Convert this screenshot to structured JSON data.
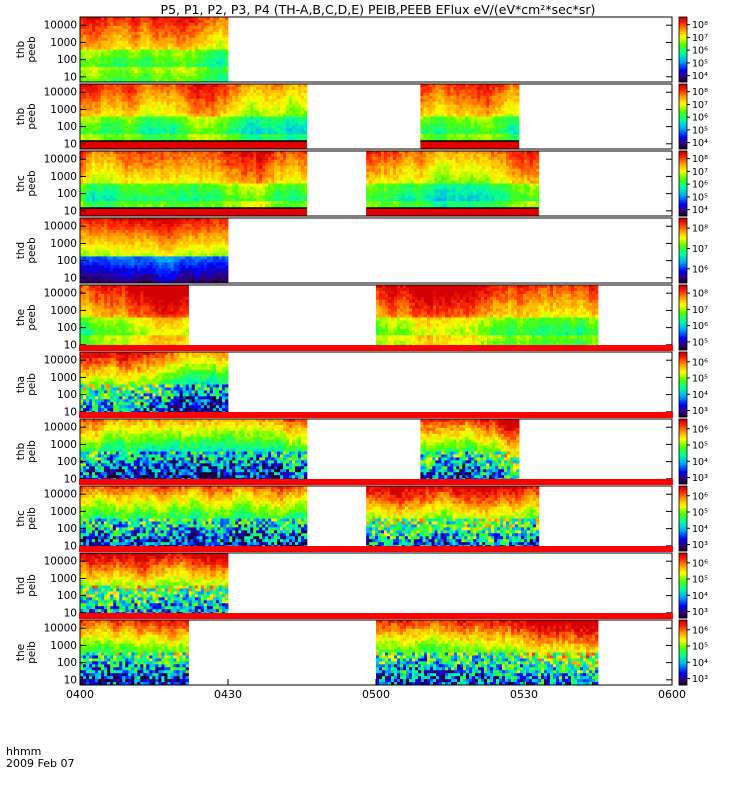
{
  "title": "P5, P1, P2, P3, P4 (TH-A,B,C,D,E) PEIB,PEEB EFlux eV/(eV*cm²*sec*sr)",
  "x_axis": {
    "label": "hhmm",
    "date": "2009 Feb 07",
    "ticks": [
      "0400",
      "0430",
      "0500",
      "0530",
      "0600"
    ]
  },
  "chart_data": {
    "type": "heatmap",
    "title": "P5, P1, P2, P3, P4 (TH-A,B,C,D,E) PEIB,PEEB EFlux eV/(eV*cm²*sec*sr)",
    "xlabel": "hhmm",
    "x_range": [
      "04:00",
      "06:00"
    ],
    "y_scale": "log",
    "y_ticks": [
      10,
      100,
      1000,
      10000
    ],
    "colormap": "rainbow",
    "panels": [
      {
        "label": [
          "thb",
          "peeb"
        ],
        "ylim": [
          5,
          30000
        ],
        "cbar": [
          "10⁴",
          "10⁵",
          "10⁶",
          "10⁷",
          "10⁸"
        ],
        "cbar_range": [
          3.5,
          8.6
        ],
        "kind": "peeb",
        "seed": 11,
        "segments": [
          [
            "04:00",
            "04:30"
          ]
        ]
      },
      {
        "label": [
          "thb",
          "peeb"
        ],
        "ylim": [
          5,
          30000
        ],
        "cbar": [
          "10⁴",
          "10⁵",
          "10⁶",
          "10⁷",
          "10⁸"
        ],
        "cbar_range": [
          3.5,
          8.6
        ],
        "kind": "peeb",
        "seed": 23,
        "redbottom": true,
        "segments": [
          [
            "04:00",
            "04:46"
          ],
          [
            "05:09",
            "05:29"
          ]
        ]
      },
      {
        "label": [
          "thc",
          "peeb"
        ],
        "ylim": [
          5,
          30000
        ],
        "cbar": [
          "10⁴",
          "10⁵",
          "10⁶",
          "10⁷",
          "10⁸"
        ],
        "cbar_range": [
          3.5,
          8.6
        ],
        "kind": "peeb",
        "seed": 37,
        "redbottom": true,
        "segments": [
          [
            "04:00",
            "04:46"
          ],
          [
            "04:58",
            "05:33"
          ]
        ]
      },
      {
        "label": [
          "thd",
          "peeb"
        ],
        "ylim": [
          5,
          30000
        ],
        "cbar": [
          "10⁶",
          "10⁷",
          "10⁸"
        ],
        "cbar_range": [
          5.3,
          8.5
        ],
        "kind": "peebd",
        "seed": 41,
        "segments": [
          [
            "04:00",
            "04:30"
          ]
        ]
      },
      {
        "label": [
          "the",
          "peeb"
        ],
        "ylim": [
          5,
          30000
        ],
        "cbar": [
          "10⁵",
          "10⁶",
          "10⁷",
          "10⁸"
        ],
        "cbar_range": [
          4.5,
          8.5
        ],
        "kind": "peeb",
        "seed": 53,
        "segments": [
          [
            "04:00",
            "04:22"
          ],
          [
            "05:00",
            "05:45"
          ]
        ]
      },
      {
        "label": [
          "tha",
          "peib"
        ],
        "ylim": [
          5,
          30000
        ],
        "cbar": [
          "10³",
          "10⁴",
          "10⁵",
          "10⁶"
        ],
        "cbar_range": [
          2.6,
          6.6
        ],
        "kind": "peib",
        "seed": 61,
        "segments": [
          [
            "04:00",
            "04:30"
          ]
        ]
      },
      {
        "label": [
          "thb",
          "peib"
        ],
        "ylim": [
          5,
          30000
        ],
        "cbar": [
          "10³",
          "10⁴",
          "10⁵",
          "10⁶"
        ],
        "cbar_range": [
          2.6,
          6.6
        ],
        "kind": "peib",
        "seed": 71,
        "segments": [
          [
            "04:00",
            "04:46"
          ],
          [
            "05:09",
            "05:29"
          ]
        ]
      },
      {
        "label": [
          "thc",
          "peib"
        ],
        "ylim": [
          5,
          30000
        ],
        "cbar": [
          "10³",
          "10⁴",
          "10⁵",
          "10⁶"
        ],
        "cbar_range": [
          2.6,
          6.6
        ],
        "kind": "peib",
        "seed": 83,
        "segments": [
          [
            "04:00",
            "04:46"
          ],
          [
            "04:58",
            "05:33"
          ]
        ]
      },
      {
        "label": [
          "thd",
          "peib"
        ],
        "ylim": [
          5,
          30000
        ],
        "cbar": [
          "10³",
          "10⁴",
          "10⁵",
          "10⁶"
        ],
        "cbar_range": [
          2.6,
          6.6
        ],
        "kind": "peib",
        "seed": 97,
        "segments": [
          [
            "04:00",
            "04:30"
          ]
        ]
      },
      {
        "label": [
          "the",
          "peib"
        ],
        "ylim": [
          5,
          30000
        ],
        "cbar": [
          "10³",
          "10⁴",
          "10⁵",
          "10⁶"
        ],
        "cbar_range": [
          2.6,
          6.6
        ],
        "kind": "peib",
        "seed": 101,
        "segments": [
          [
            "04:00",
            "04:22"
          ],
          [
            "05:00",
            "05:45"
          ]
        ]
      }
    ]
  }
}
